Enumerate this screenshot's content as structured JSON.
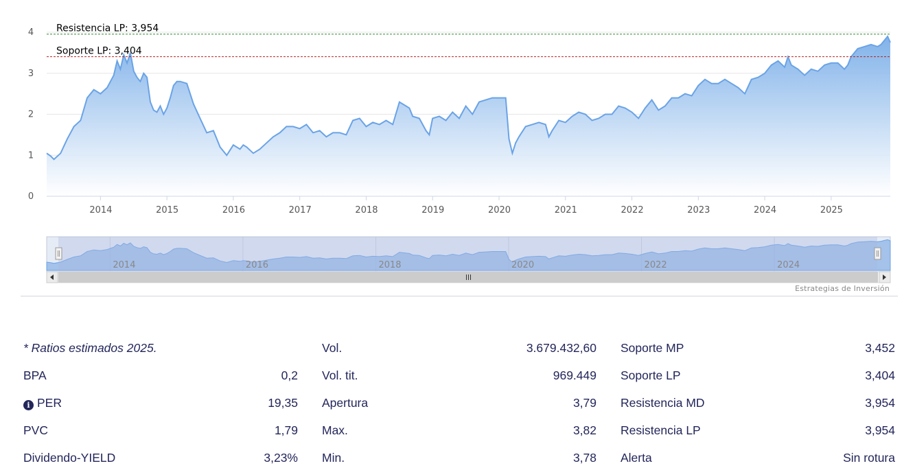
{
  "chart_data": {
    "type": "area",
    "y_ticks": [
      "0",
      "1",
      "2",
      "3",
      "4"
    ],
    "ylim": [
      0,
      4.1
    ],
    "x_ticks": [
      "2014",
      "2015",
      "2016",
      "2017",
      "2018",
      "2019",
      "2020",
      "2021",
      "2022",
      "2023",
      "2024",
      "2025"
    ],
    "xlim": [
      2013.19,
      2025.89
    ],
    "navigator_ticks": [
      "2014",
      "2016",
      "2018",
      "2020",
      "2022",
      "2024"
    ],
    "series": [
      {
        "x": [
          2013.19,
          2013.25,
          2013.3,
          2013.4,
          2013.5,
          2013.6,
          2013.7,
          2013.8,
          2013.9,
          2014.0,
          2014.1,
          2014.2,
          2014.25,
          2014.3,
          2014.35,
          2014.4,
          2014.45,
          2014.5,
          2014.55,
          2014.6,
          2014.65,
          2014.7,
          2014.75,
          2014.8,
          2014.85,
          2014.9,
          2014.95,
          2015.0,
          2015.05,
          2015.1,
          2015.15,
          2015.2,
          2015.3,
          2015.4,
          2015.5,
          2015.6,
          2015.7,
          2015.8,
          2015.9,
          2016.0,
          2016.1,
          2016.15,
          2016.2,
          2016.3,
          2016.4,
          2016.5,
          2016.6,
          2016.7,
          2016.8,
          2016.9,
          2017.0,
          2017.1,
          2017.2,
          2017.3,
          2017.4,
          2017.5,
          2017.6,
          2017.7,
          2017.8,
          2017.9,
          2018.0,
          2018.1,
          2018.2,
          2018.3,
          2018.4,
          2018.5,
          2018.6,
          2018.65,
          2018.7,
          2018.8,
          2018.9,
          2018.95,
          2019.0,
          2019.1,
          2019.2,
          2019.3,
          2019.4,
          2019.5,
          2019.6,
          2019.7,
          2019.8,
          2019.9,
          2020.0,
          2020.1,
          2020.15,
          2020.2,
          2020.25,
          2020.3,
          2020.4,
          2020.5,
          2020.6,
          2020.7,
          2020.75,
          2020.8,
          2020.9,
          2021.0,
          2021.1,
          2021.2,
          2021.3,
          2021.4,
          2021.5,
          2021.6,
          2021.7,
          2021.8,
          2021.9,
          2022.0,
          2022.1,
          2022.2,
          2022.3,
          2022.4,
          2022.5,
          2022.6,
          2022.7,
          2022.8,
          2022.9,
          2023.0,
          2023.1,
          2023.2,
          2023.3,
          2023.4,
          2023.5,
          2023.6,
          2023.7,
          2023.8,
          2023.9,
          2024.0,
          2024.1,
          2024.2,
          2024.3,
          2024.35,
          2024.4,
          2024.5,
          2024.6,
          2024.7,
          2024.8,
          2024.9,
          2025.0,
          2025.1,
          2025.2,
          2025.25,
          2025.3,
          2025.4,
          2025.5,
          2025.6,
          2025.7,
          2025.75,
          2025.8,
          2025.85,
          2025.89
        ],
        "y": [
          1.05,
          0.98,
          0.9,
          1.05,
          1.4,
          1.7,
          1.85,
          2.4,
          2.6,
          2.5,
          2.65,
          2.95,
          3.3,
          3.1,
          3.45,
          3.25,
          3.5,
          3.05,
          2.9,
          2.8,
          3.0,
          2.9,
          2.3,
          2.1,
          2.05,
          2.2,
          2.0,
          2.15,
          2.4,
          2.7,
          2.8,
          2.8,
          2.75,
          2.25,
          1.9,
          1.55,
          1.6,
          1.2,
          1.0,
          1.25,
          1.15,
          1.25,
          1.2,
          1.05,
          1.15,
          1.3,
          1.45,
          1.55,
          1.7,
          1.7,
          1.65,
          1.75,
          1.55,
          1.6,
          1.45,
          1.55,
          1.55,
          1.5,
          1.85,
          1.9,
          1.7,
          1.8,
          1.75,
          1.85,
          1.75,
          2.3,
          2.2,
          2.15,
          1.95,
          1.9,
          1.6,
          1.5,
          1.9,
          1.95,
          1.85,
          2.05,
          1.9,
          2.2,
          2.0,
          2.3,
          2.35,
          2.4,
          2.4,
          2.4,
          1.4,
          1.05,
          1.3,
          1.45,
          1.7,
          1.75,
          1.8,
          1.75,
          1.45,
          1.6,
          1.85,
          1.8,
          1.95,
          2.05,
          2.0,
          1.85,
          1.9,
          2.0,
          2.0,
          2.2,
          2.15,
          2.05,
          1.9,
          2.15,
          2.35,
          2.1,
          2.2,
          2.4,
          2.4,
          2.5,
          2.45,
          2.7,
          2.85,
          2.75,
          2.75,
          2.85,
          2.75,
          2.65,
          2.5,
          2.85,
          2.9,
          3.0,
          3.2,
          3.3,
          3.15,
          3.4,
          3.2,
          3.1,
          2.95,
          3.1,
          3.05,
          3.2,
          3.25,
          3.25,
          3.1,
          3.2,
          3.4,
          3.6,
          3.65,
          3.7,
          3.65,
          3.7,
          3.8,
          3.9,
          3.75
        ]
      }
    ],
    "lines": [
      {
        "label": "Resistencia LP: 3,954",
        "value": 3.954,
        "color": "#2e8b2e"
      },
      {
        "label": "Soporte LP: 3,404",
        "value": 3.404,
        "color": "#b22222"
      }
    ],
    "area_color": "#7aaee8"
  },
  "credit": "Estrategias de Inversión",
  "stats": {
    "col1": [
      {
        "label": "* Ratios estimados 2025.",
        "value": ""
      },
      {
        "label": "BPA",
        "value": "0,2"
      },
      {
        "label": "PER",
        "value": "19,35",
        "icon": "info-icon"
      },
      {
        "label": "PVC",
        "value": "1,79"
      },
      {
        "label": "Dividendo-YIELD",
        "value": "3,23%"
      }
    ],
    "col2": [
      {
        "label": "Vol.",
        "value": "3.679.432,60"
      },
      {
        "label": "Vol. tit.",
        "value": "969.449"
      },
      {
        "label": "Apertura",
        "value": "3,79"
      },
      {
        "label": "Max.",
        "value": "3,82"
      },
      {
        "label": "Min.",
        "value": "3,78"
      }
    ],
    "col3": [
      {
        "label": "Soporte MP",
        "value": "3,452"
      },
      {
        "label": "Soporte LP",
        "value": "3,404"
      },
      {
        "label": "Resistencia MD",
        "value": "3,954"
      },
      {
        "label": "Resistencia LP",
        "value": "3,954"
      },
      {
        "label": "Alerta",
        "value": "Sin rotura"
      }
    ]
  }
}
